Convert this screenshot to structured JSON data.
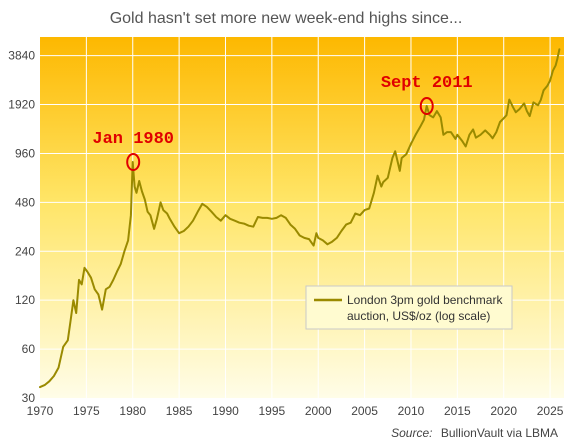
{
  "chart_data": {
    "type": "line",
    "title": "Gold hasn't set more new week-end highs since...",
    "xlabel": "",
    "ylabel": "",
    "y_scale": "log",
    "xlim": [
      1970,
      2026.5
    ],
    "ylim": [
      30,
      5000
    ],
    "grid": true,
    "x_ticks": [
      1970,
      1975,
      1980,
      1985,
      1990,
      1995,
      2000,
      2005,
      2010,
      2015,
      2020,
      2025
    ],
    "y_ticks": [
      30,
      60,
      120,
      240,
      480,
      960,
      1920,
      3840
    ],
    "legend": {
      "placement": "lower-right",
      "lines": [
        "London 3pm gold benchmark",
        "auction, US$/oz (log scale)"
      ]
    },
    "series": [
      {
        "name": "London 3pm gold benchmark auction, US$/oz (log scale)",
        "color": "#9a8a00",
        "points": [
          [
            1970,
            35
          ],
          [
            1970.5,
            36
          ],
          [
            1971,
            38
          ],
          [
            1971.5,
            41
          ],
          [
            1972,
            46
          ],
          [
            1972.5,
            62
          ],
          [
            1973,
            68
          ],
          [
            1973.3,
            90
          ],
          [
            1973.6,
            120
          ],
          [
            1973.9,
            100
          ],
          [
            1974.2,
            160
          ],
          [
            1974.5,
            150
          ],
          [
            1974.8,
            190
          ],
          [
            1975.1,
            180
          ],
          [
            1975.5,
            165
          ],
          [
            1975.9,
            140
          ],
          [
            1976.3,
            130
          ],
          [
            1976.7,
            105
          ],
          [
            1977.1,
            140
          ],
          [
            1977.5,
            145
          ],
          [
            1977.9,
            160
          ],
          [
            1978.3,
            180
          ],
          [
            1978.7,
            200
          ],
          [
            1979.1,
            240
          ],
          [
            1979.5,
            280
          ],
          [
            1979.8,
            400
          ],
          [
            1980.0,
            850
          ],
          [
            1980.2,
            600
          ],
          [
            1980.4,
            550
          ],
          [
            1980.7,
            650
          ],
          [
            1981.0,
            560
          ],
          [
            1981.3,
            500
          ],
          [
            1981.6,
            420
          ],
          [
            1981.9,
            400
          ],
          [
            1982.3,
            330
          ],
          [
            1982.6,
            380
          ],
          [
            1983.0,
            480
          ],
          [
            1983.3,
            430
          ],
          [
            1983.7,
            410
          ],
          [
            1984.0,
            380
          ],
          [
            1984.5,
            340
          ],
          [
            1985.0,
            310
          ],
          [
            1985.5,
            320
          ],
          [
            1986.0,
            340
          ],
          [
            1986.5,
            370
          ],
          [
            1987.0,
            420
          ],
          [
            1987.5,
            470
          ],
          [
            1988.0,
            450
          ],
          [
            1988.5,
            420
          ],
          [
            1989.0,
            390
          ],
          [
            1989.5,
            370
          ],
          [
            1990.0,
            400
          ],
          [
            1990.5,
            380
          ],
          [
            1991.0,
            370
          ],
          [
            1991.5,
            360
          ],
          [
            1992.0,
            355
          ],
          [
            1992.5,
            345
          ],
          [
            1993.0,
            340
          ],
          [
            1993.5,
            390
          ],
          [
            1994.0,
            385
          ],
          [
            1994.5,
            385
          ],
          [
            1995.0,
            380
          ],
          [
            1995.5,
            385
          ],
          [
            1996.0,
            400
          ],
          [
            1996.5,
            385
          ],
          [
            1997.0,
            350
          ],
          [
            1997.5,
            330
          ],
          [
            1998.0,
            300
          ],
          [
            1998.5,
            290
          ],
          [
            1999.0,
            285
          ],
          [
            1999.5,
            260
          ],
          [
            1999.8,
            310
          ],
          [
            2000.0,
            290
          ],
          [
            2000.5,
            280
          ],
          [
            2001.0,
            265
          ],
          [
            2001.5,
            275
          ],
          [
            2002.0,
            290
          ],
          [
            2002.5,
            320
          ],
          [
            2003.0,
            350
          ],
          [
            2003.5,
            360
          ],
          [
            2004.0,
            410
          ],
          [
            2004.5,
            400
          ],
          [
            2005.0,
            430
          ],
          [
            2005.5,
            440
          ],
          [
            2006.0,
            550
          ],
          [
            2006.4,
            700
          ],
          [
            2006.8,
            600
          ],
          [
            2007.0,
            640
          ],
          [
            2007.5,
            680
          ],
          [
            2008.0,
            900
          ],
          [
            2008.3,
            990
          ],
          [
            2008.8,
            750
          ],
          [
            2009.0,
            900
          ],
          [
            2009.5,
            950
          ],
          [
            2010.0,
            1100
          ],
          [
            2010.5,
            1250
          ],
          [
            2011.0,
            1400
          ],
          [
            2011.4,
            1550
          ],
          [
            2011.7,
            1880
          ],
          [
            2012.0,
            1650
          ],
          [
            2012.4,
            1600
          ],
          [
            2012.8,
            1750
          ],
          [
            2013.2,
            1600
          ],
          [
            2013.5,
            1250
          ],
          [
            2013.9,
            1300
          ],
          [
            2014.3,
            1300
          ],
          [
            2014.8,
            1180
          ],
          [
            2015.0,
            1250
          ],
          [
            2015.5,
            1150
          ],
          [
            2015.9,
            1060
          ],
          [
            2016.3,
            1250
          ],
          [
            2016.7,
            1350
          ],
          [
            2017.0,
            1200
          ],
          [
            2017.5,
            1250
          ],
          [
            2018.0,
            1330
          ],
          [
            2018.5,
            1250
          ],
          [
            2018.8,
            1190
          ],
          [
            2019.2,
            1300
          ],
          [
            2019.6,
            1500
          ],
          [
            2020.0,
            1580
          ],
          [
            2020.3,
            1650
          ],
          [
            2020.6,
            2060
          ],
          [
            2021.0,
            1850
          ],
          [
            2021.3,
            1720
          ],
          [
            2021.7,
            1800
          ],
          [
            2022.2,
            1950
          ],
          [
            2022.5,
            1750
          ],
          [
            2022.8,
            1630
          ],
          [
            2023.2,
            1980
          ],
          [
            2023.7,
            1900
          ],
          [
            2024.0,
            2050
          ],
          [
            2024.3,
            2350
          ],
          [
            2024.7,
            2500
          ],
          [
            2025.0,
            2700
          ],
          [
            2025.3,
            3100
          ],
          [
            2025.6,
            3350
          ],
          [
            2025.8,
            3700
          ],
          [
            2026.0,
            4200
          ]
        ]
      }
    ],
    "annotations": [
      {
        "label": "Jan 1980",
        "x": 1980.05,
        "y": 850,
        "color": "#e00000"
      },
      {
        "label": "Sept 2011",
        "x": 2011.7,
        "y": 1880,
        "color": "#e00000"
      }
    ]
  },
  "source": {
    "lead": "Source:",
    "text": "BullionVault via LBMA"
  },
  "colors": {
    "background_top": "#fdb800",
    "background_bottom": "#fffde8",
    "line": "#9a8a00",
    "annotation": "#e00000",
    "grid": "#ffffff"
  }
}
